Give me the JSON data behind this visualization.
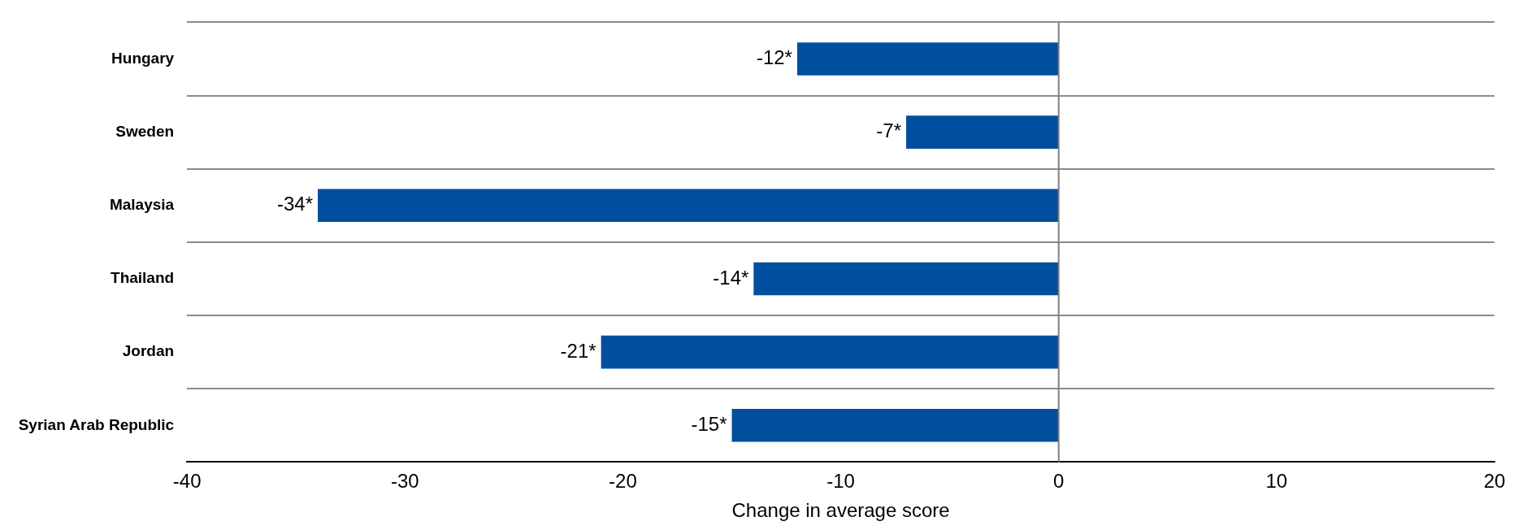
{
  "chart_data": {
    "type": "bar",
    "orientation": "horizontal",
    "xlabel": "Change in average score",
    "categories": [
      "Hungary",
      "Sweden",
      "Malaysia",
      "Thailand",
      "Jordan",
      "Syrian Arab Republic"
    ],
    "values": [
      -12,
      -7,
      -34,
      -14,
      -21,
      -15
    ],
    "color": "#004f9f",
    "value_labels": [
      "-12*",
      "-7*",
      "-34*",
      "-14*",
      "-21*",
      "-15*"
    ],
    "xlim": [
      -40,
      20
    ],
    "xticks": [
      -40,
      -30,
      -20,
      -10,
      0,
      10,
      20
    ],
    "grid": "y",
    "ref_lines": [
      {
        "axis": "x",
        "value": 0,
        "color": "#808080"
      }
    ],
    "legend": false
  }
}
